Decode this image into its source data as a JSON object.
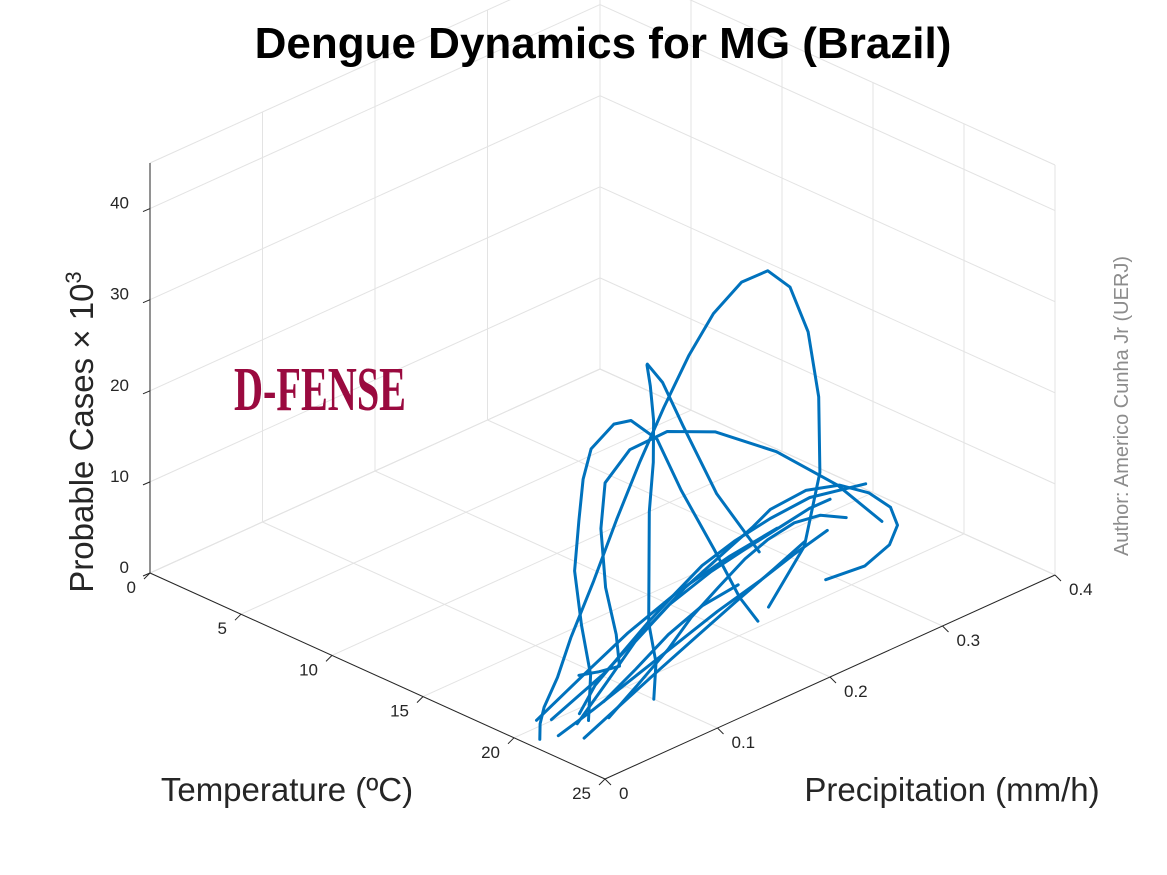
{
  "chart_data": {
    "type": "line",
    "title": "Dengue Dynamics for MG (Brazil)",
    "xlabel": "Temperature (ºC)",
    "ylabel": "Precipitation (mm/h)",
    "zlabel_base": "Probable Cases ",
    "zlabel_times": "×",
    "zlabel_ten": " 10",
    "zlabel_exp": "3",
    "author": "Author: Americo Cunha Jr (UERJ)",
    "logo": "D-FENSE",
    "x_ticks": [
      "0",
      "5",
      "10",
      "15",
      "20",
      "25"
    ],
    "y_ticks": [
      "0",
      "0.1",
      "0.2",
      "0.3",
      "0.4"
    ],
    "z_ticks": [
      "0",
      "10",
      "20",
      "30",
      "40"
    ],
    "xlim": [
      0,
      25
    ],
    "ylim": [
      0,
      0.4
    ],
    "zlim": [
      0,
      45
    ],
    "grid": true,
    "line_color": "#0072bd",
    "series": [
      {
        "x": [
          20.8,
          20.2,
          19.8,
          19.3,
          18.8,
          18.2,
          17.6,
          17.0,
          16.5,
          16.0,
          15.5,
          15.2,
          15.4,
          16.0,
          17.0,
          18.2,
          19.5,
          20.5,
          21.0
        ],
        "y": [
          0.01,
          0.02,
          0.03,
          0.05,
          0.07,
          0.1,
          0.13,
          0.16,
          0.19,
          0.22,
          0.25,
          0.28,
          0.3,
          0.31,
          0.31,
          0.3,
          0.28,
          0.25,
          0.21
        ],
        "z": [
          0,
          0.6,
          1.5,
          3.2,
          6.0,
          10.0,
          14.5,
          18.5,
          22.5,
          26.0,
          28.5,
          30.0,
          30.3,
          28.5,
          24.5,
          19.0,
          13.0,
          7.5,
          3.5
        ]
      },
      {
        "x": [
          21.0,
          20.5,
          20.0,
          19.0,
          18.0,
          17.0,
          16.2,
          15.6,
          15.3,
          15.5,
          16.2,
          17.4,
          18.8,
          19.8
        ],
        "y": [
          0.05,
          0.06,
          0.06,
          0.07,
          0.09,
          0.11,
          0.13,
          0.16,
          0.18,
          0.2,
          0.21,
          0.22,
          0.22,
          0.22
        ],
        "z": [
          0,
          4.0,
          9.0,
          13.5,
          17.0,
          19.5,
          21.0,
          21.5,
          20.5,
          17.5,
          12.0,
          6.0,
          2.0,
          0.3
        ]
      },
      {
        "x": [
          21.5,
          21.0,
          20.6,
          20.0,
          19.4,
          19.0,
          18.4,
          17.6,
          16.8,
          16.2,
          15.8,
          15.7,
          16.3,
          17.4
        ],
        "y": [
          0.1,
          0.11,
          0.11,
          0.12,
          0.13,
          0.14,
          0.15,
          0.16,
          0.17,
          0.18,
          0.2,
          0.22,
          0.24,
          0.26
        ],
        "z": [
          0,
          3.0,
          7.0,
          12.0,
          17.0,
          21.5,
          25.0,
          27.5,
          28.5,
          27.5,
          24.0,
          18.0,
          10.0,
          3.5
        ]
      },
      {
        "x": [
          18.0,
          18.5,
          19.0,
          18.2,
          17.0,
          15.5,
          14.5,
          14.0,
          14.2,
          15.0,
          16.5,
          18.0,
          19.2
        ],
        "y": [
          0.09,
          0.1,
          0.11,
          0.12,
          0.13,
          0.15,
          0.17,
          0.2,
          0.23,
          0.26,
          0.29,
          0.32,
          0.34
        ],
        "z": [
          0,
          0.3,
          0.8,
          3.0,
          6.5,
          10.5,
          13.5,
          15.0,
          15.5,
          14.5,
          12.0,
          8.0,
          4.0
        ]
      },
      {
        "x": [
          20.2,
          19.8,
          19.4,
          18.8,
          18.0,
          17.0,
          16.0,
          15.2,
          14.6,
          14.3,
          14.4,
          15.0,
          16.0,
          17.2,
          18.2,
          19.0,
          19.5,
          19.2
        ],
        "y": [
          0.03,
          0.06,
          0.09,
          0.12,
          0.16,
          0.2,
          0.24,
          0.27,
          0.3,
          0.32,
          0.35,
          0.37,
          0.38,
          0.38,
          0.37,
          0.35,
          0.32,
          0.29
        ],
        "z": [
          0.5,
          1.0,
          1.5,
          2.0,
          2.5,
          2.5,
          2.0,
          1.5,
          1.5,
          2.0,
          2.5,
          2.5,
          2.0,
          1.5,
          1.0,
          0.7,
          0.5,
          0.4
        ]
      },
      {
        "x": [
          20.5,
          19.5,
          18.5,
          17.5,
          16.5,
          15.5,
          14.8,
          14.3,
          14.0,
          14.6
        ],
        "y": [
          0.05,
          0.08,
          0.12,
          0.16,
          0.2,
          0.24,
          0.28,
          0.32,
          0.36,
          0.4
        ],
        "z": [
          0.3,
          0.8,
          1.2,
          1.5,
          1.5,
          1.4,
          1.2,
          1.0,
          0.8,
          0.6
        ]
      },
      {
        "x": [
          21.0,
          19.5,
          18.0,
          16.8,
          16.0,
          15.5,
          15.0,
          14.6,
          14.5
        ],
        "y": [
          0.04,
          0.09,
          0.14,
          0.19,
          0.24,
          0.28,
          0.32,
          0.35,
          0.37
        ],
        "z": [
          0.2,
          0.5,
          0.9,
          1.1,
          1.2,
          1.1,
          0.9,
          0.7,
          0.5
        ]
      },
      {
        "x": [
          21.5,
          20.5,
          19.2,
          18.0,
          17.0,
          16.0,
          15.4,
          15.0,
          15.2,
          16.0
        ],
        "y": [
          0.06,
          0.1,
          0.15,
          0.19,
          0.23,
          0.27,
          0.3,
          0.33,
          0.35,
          0.36
        ],
        "z": [
          0.2,
          0.4,
          0.6,
          0.8,
          0.9,
          0.9,
          0.8,
          0.6,
          0.5,
          0.4
        ]
      },
      {
        "x": [
          20.0,
          18.8,
          17.6,
          16.6,
          15.8,
          15.3
        ],
        "y": [
          0.02,
          0.08,
          0.14,
          0.2,
          0.26,
          0.31
        ],
        "z": [
          0.8,
          1.2,
          1.5,
          1.7,
          1.6,
          1.4
        ]
      },
      {
        "x": [
          21.2,
          20.6,
          19.8,
          19.0,
          18.2,
          17.5,
          16.8,
          16.2
        ],
        "y": [
          0.02,
          0.06,
          0.11,
          0.16,
          0.21,
          0.26,
          0.3,
          0.34
        ],
        "z": [
          0.2,
          0.2,
          0.3,
          0.4,
          0.5,
          0.5,
          0.4,
          0.3
        ]
      },
      {
        "x": [
          20.6,
          19.9,
          19.2,
          18.6,
          18.1
        ],
        "y": [
          0.07,
          0.11,
          0.15,
          0.19,
          0.23
        ],
        "z": [
          0.6,
          1.3,
          2.2,
          2.6,
          2.2
        ]
      },
      {
        "x": [
          22.0,
          21.0,
          20.0,
          19.0,
          18.0,
          17.0,
          16.2
        ],
        "y": [
          0.03,
          0.08,
          0.13,
          0.18,
          0.23,
          0.28,
          0.32
        ],
        "z": [
          0.1,
          0.2,
          0.3,
          0.3,
          0.3,
          0.2,
          0.2
        ]
      }
    ]
  }
}
